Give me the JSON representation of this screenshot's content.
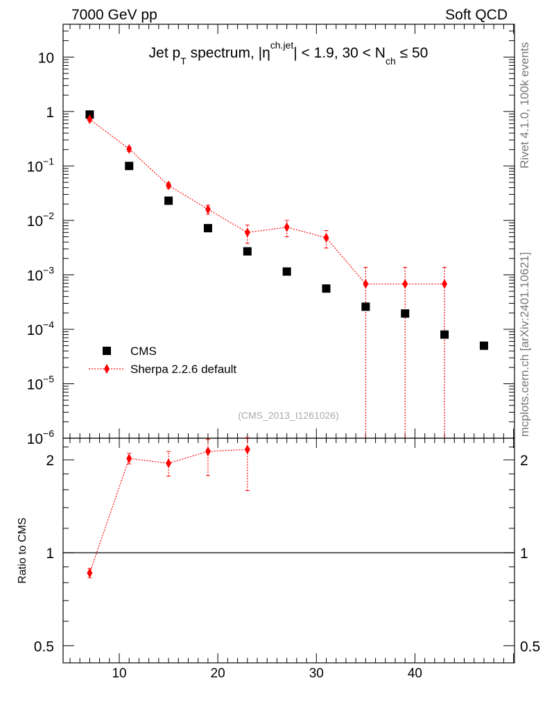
{
  "header": {
    "left_label": "7000 GeV pp",
    "right_label": "Soft QCD"
  },
  "side": {
    "rivet_label": "Rivet 4.1.0,  100k events",
    "mcplots_label": "mcplots.cern.ch [arXiv:2401.10621]"
  },
  "chart_data": [
    {
      "panel": "main",
      "type": "scatter",
      "title": {
        "prefix": "Jet p",
        "sub1": "T",
        "mid": " spectrum, |η",
        "sup1": "ch.jet",
        "mid2": "| < 1.9, 30 < N",
        "sub2": "ch",
        "suffix": " ≤ 50"
      },
      "analysis_id": "(CMS_2013_I1261026)",
      "y_scale": "log",
      "ylim": [
        1e-06,
        40
      ],
      "xlim": [
        4.3,
        50.1
      ],
      "y_ticks": [
        {
          "v": 10,
          "base": "10",
          "exp": ""
        },
        {
          "v": 1,
          "base": "1",
          "exp": ""
        },
        {
          "v": 0.1,
          "base": "10",
          "exp": "−1"
        },
        {
          "v": 0.01,
          "base": "10",
          "exp": "−2"
        },
        {
          "v": 0.001,
          "base": "10",
          "exp": "−3"
        },
        {
          "v": 0.0001,
          "base": "10",
          "exp": "−4"
        },
        {
          "v": 1e-05,
          "base": "10",
          "exp": "−5"
        },
        {
          "v": 1e-06,
          "base": "10",
          "exp": "−6"
        }
      ],
      "series": [
        {
          "name": "CMS",
          "marker": "square",
          "color": "#000000",
          "x": [
            7,
            11,
            15,
            19,
            23,
            27,
            31,
            35,
            39,
            43,
            47
          ],
          "y": [
            0.88,
            0.1,
            0.023,
            0.0072,
            0.0027,
            0.00115,
            0.00056,
            0.00026,
            0.000195,
            8e-05,
            5e-05
          ]
        },
        {
          "name": "Sherpa 2.2.6 default",
          "marker": "diamond",
          "color": "#ff0000",
          "x": [
            7,
            11,
            15,
            19,
            23,
            27,
            31,
            35,
            39,
            43
          ],
          "y": [
            0.72,
            0.205,
            0.044,
            0.016,
            0.006,
            0.0075,
            0.0048,
            0.00068,
            0.00068,
            0.00068
          ],
          "err_up": [
            0.05,
            0.02,
            0.005,
            0.003,
            0.0022,
            0.0025,
            0.0017,
            0.0007,
            0.0007,
            0.0007
          ],
          "err_down": [
            0.05,
            0.02,
            0.005,
            0.003,
            0.0022,
            0.0025,
            0.0017,
            0.00068,
            0.00068,
            0.00068
          ]
        }
      ],
      "legend": "bottom-left"
    },
    {
      "panel": "ratio",
      "type": "line",
      "ylabel": "Ratio to CMS",
      "y_scale": "log",
      "ylim": [
        0.44,
        2.35
      ],
      "xlim": [
        4.3,
        50.1
      ],
      "y_ticks": [
        2,
        1,
        0.5
      ],
      "x_ticks": [
        10,
        20,
        30,
        40
      ],
      "reference": 1,
      "series": [
        {
          "name": "Sherpa 2.2.6 default",
          "color": "#ff0000",
          "x": [
            7,
            11,
            15,
            19,
            23
          ],
          "y": [
            0.86,
            2.02,
            1.95,
            2.13,
            2.16
          ],
          "err_up": [
            0.03,
            0.08,
            0.18,
            0.2,
            0.2
          ],
          "err_down": [
            0.03,
            0.08,
            0.18,
            0.35,
            0.57
          ]
        }
      ]
    }
  ]
}
